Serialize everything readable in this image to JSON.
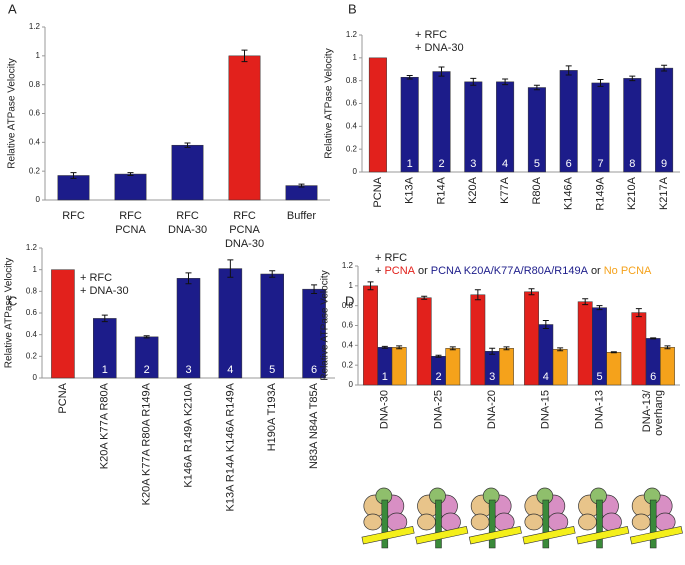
{
  "chart_data": [
    {
      "type": "bar",
      "panel": "A",
      "y_label": "Relative ATPase Velocity",
      "categories": [
        [
          "RFC"
        ],
        [
          "RFC",
          "PCNA"
        ],
        [
          "RFC",
          "DNA-30"
        ],
        [
          "RFC",
          "PCNA",
          "DNA-30"
        ],
        [
          "Buffer"
        ]
      ],
      "values": [
        0.17,
        0.18,
        0.38,
        1.0,
        0.1
      ],
      "errors": [
        0.02,
        0.01,
        0.015,
        0.04,
        0.01
      ],
      "colors": [
        "#1c1c8a",
        "#1c1c8a",
        "#1c1c8a",
        "#e2211c",
        "#1c1c8a"
      ],
      "ylim": [
        0,
        1.2
      ],
      "yticks": [
        0,
        0.2,
        0.4,
        0.6,
        0.8,
        1,
        1.2
      ]
    },
    {
      "type": "bar",
      "panel": "B",
      "y_label": "Relative ATPase Velocity",
      "annotations": [
        "+ RFC",
        "+ DNA-30"
      ],
      "categories": [
        [
          "PCNA"
        ],
        [
          "K13A"
        ],
        [
          "R14A"
        ],
        [
          "K20A"
        ],
        [
          "K77A"
        ],
        [
          "R80A"
        ],
        [
          "K146A"
        ],
        [
          "R149A"
        ],
        [
          "K210A"
        ],
        [
          "K217A"
        ]
      ],
      "bar_labels": [
        null,
        "1",
        "2",
        "3",
        "4",
        "5",
        "6",
        "7",
        "8",
        "9"
      ],
      "values": [
        1.0,
        0.83,
        0.88,
        0.79,
        0.79,
        0.74,
        0.89,
        0.78,
        0.82,
        0.91
      ],
      "errors": [
        0,
        0.015,
        0.04,
        0.03,
        0.025,
        0.02,
        0.04,
        0.03,
        0.02,
        0.025
      ],
      "colors": [
        "#e2211c",
        "#1c1c8a",
        "#1c1c8a",
        "#1c1c8a",
        "#1c1c8a",
        "#1c1c8a",
        "#1c1c8a",
        "#1c1c8a",
        "#1c1c8a",
        "#1c1c8a"
      ],
      "ylim": [
        0,
        1.2
      ],
      "yticks": [
        0,
        0.2,
        0.4,
        0.6,
        0.8,
        1,
        1.2
      ]
    },
    {
      "type": "bar",
      "panel": "C",
      "y_label": "Relative ATPase Velocity",
      "annotations": [
        "+ RFC",
        "+ DNA-30"
      ],
      "categories": [
        [
          "PCNA"
        ],
        [
          "K20A K77A R80A"
        ],
        [
          "K20A K77A R80A R149A"
        ],
        [
          "K146A R149A K210A"
        ],
        [
          "K13A R14A K146A R149A"
        ],
        [
          "H190A T193A"
        ],
        [
          "N83A N84A T85A"
        ]
      ],
      "bar_labels": [
        null,
        "1",
        "2",
        "3",
        "4",
        "5",
        "6"
      ],
      "values": [
        1.0,
        0.55,
        0.38,
        0.92,
        1.01,
        0.96,
        0.82
      ],
      "errors": [
        0,
        0.03,
        0.01,
        0.05,
        0.08,
        0.03,
        0.04
      ],
      "colors": [
        "#e2211c",
        "#1c1c8a",
        "#1c1c8a",
        "#1c1c8a",
        "#1c1c8a",
        "#1c1c8a",
        "#1c1c8a"
      ],
      "ylim": [
        0,
        1.2
      ],
      "yticks": [
        0,
        0.2,
        0.4,
        0.6,
        0.8,
        1,
        1.2
      ]
    },
    {
      "type": "grouped_bar",
      "panel": "D",
      "y_label": "Relative ATPase Velocity",
      "annotations": [
        "+ RFC"
      ],
      "legend_prefix": "+",
      "legend_joiner": "or",
      "categories": [
        [
          "DNA-30"
        ],
        [
          "DNA-25"
        ],
        [
          "DNA-20"
        ],
        [
          "DNA-15"
        ],
        [
          "DNA-13"
        ],
        [
          "DNA-13/",
          "overhang"
        ]
      ],
      "bar_labels": [
        "1",
        "2",
        "3",
        "4",
        "5",
        "6"
      ],
      "series": [
        {
          "name": "PCNA",
          "color": "#e2211c",
          "values": [
            1.0,
            0.88,
            0.91,
            0.94,
            0.84,
            0.73
          ],
          "errors": [
            0.04,
            0.015,
            0.05,
            0.03,
            0.03,
            0.04
          ]
        },
        {
          "name": "PCNA K20A/K77A/R80A/R149A",
          "color": "#1c1c8a",
          "values": [
            0.38,
            0.29,
            0.34,
            0.61,
            0.78,
            0.47
          ],
          "errors": [
            0.01,
            0.01,
            0.03,
            0.04,
            0.02,
            0.005
          ]
        },
        {
          "name": "No PCNA",
          "color": "#f5a21b",
          "values": [
            0.38,
            0.37,
            0.37,
            0.36,
            0.33,
            0.38
          ],
          "errors": [
            0.015,
            0.015,
            0.015,
            0.015,
            0.005,
            0.015
          ]
        }
      ],
      "ylim": [
        0,
        1.2
      ],
      "yticks": [
        0,
        0.2,
        0.4,
        0.6,
        0.8,
        1,
        1.2
      ]
    }
  ]
}
